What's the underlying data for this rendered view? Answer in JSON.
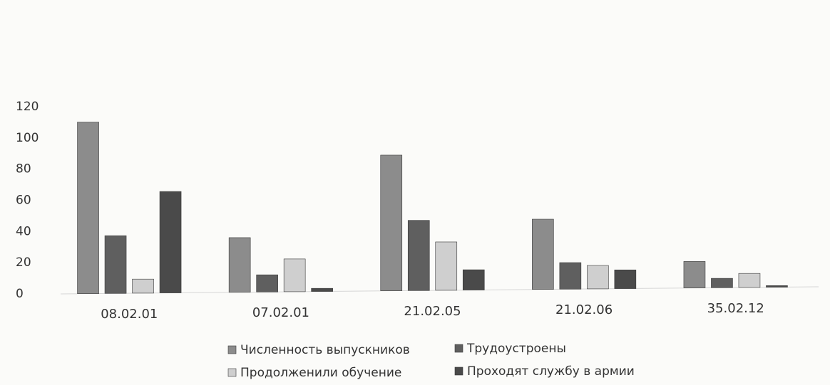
{
  "chart_data": {
    "type": "bar",
    "title": "",
    "categories": [
      "08.02.01",
      "07.02.01",
      "21.02.05",
      "21.02.06",
      "35.02.12"
    ],
    "series": [
      {
        "name": "Численность выпускников",
        "values": [
          110,
          35,
          87,
          45,
          17
        ],
        "color": "#8c8c8c"
      },
      {
        "name": "Трудоустроены",
        "values": [
          37,
          11,
          45,
          17,
          6
        ],
        "color": "#5f5f5f"
      },
      {
        "name": "Продолженили обучение",
        "values": [
          9,
          21,
          31,
          15,
          9
        ],
        "color": "#cfcfcf"
      },
      {
        "name": "Проходят службу в армии",
        "values": [
          65,
          2,
          13,
          12,
          1
        ],
        "color": "#4a4a4a"
      }
    ],
    "y_ticks": [
      "0",
      "20",
      "40",
      "60",
      "80",
      "100",
      "120"
    ],
    "ylim": [
      0,
      120
    ],
    "grid": false,
    "legend_position": "bottom"
  }
}
